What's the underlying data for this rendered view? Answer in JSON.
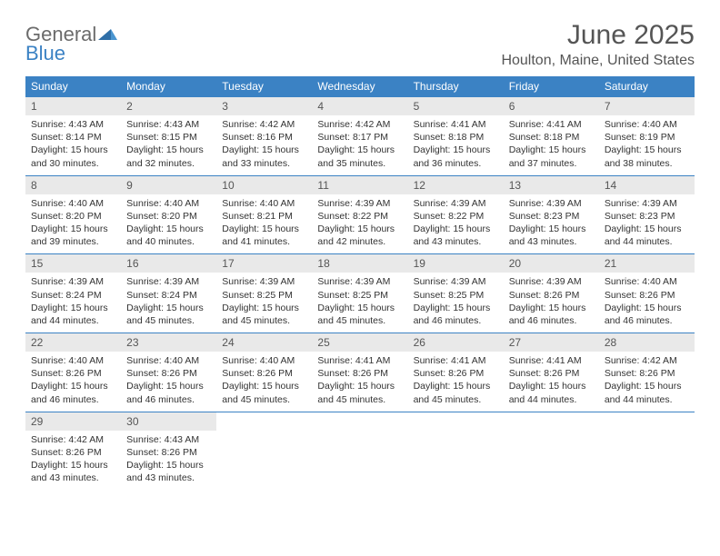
{
  "logo": {
    "word1": "General",
    "word2": "Blue"
  },
  "title": "June 2025",
  "subtitle": "Houlton, Maine, United States",
  "colors": {
    "header_bg": "#3b82c4",
    "daynum_bg": "#e9e9e9",
    "text": "#333333",
    "title": "#555555"
  },
  "weekdays": [
    "Sunday",
    "Monday",
    "Tuesday",
    "Wednesday",
    "Thursday",
    "Friday",
    "Saturday"
  ],
  "weeks": [
    [
      {
        "n": "1",
        "sr": "4:43 AM",
        "ss": "8:14 PM",
        "dl": "15 hours and 30 minutes."
      },
      {
        "n": "2",
        "sr": "4:43 AM",
        "ss": "8:15 PM",
        "dl": "15 hours and 32 minutes."
      },
      {
        "n": "3",
        "sr": "4:42 AM",
        "ss": "8:16 PM",
        "dl": "15 hours and 33 minutes."
      },
      {
        "n": "4",
        "sr": "4:42 AM",
        "ss": "8:17 PM",
        "dl": "15 hours and 35 minutes."
      },
      {
        "n": "5",
        "sr": "4:41 AM",
        "ss": "8:18 PM",
        "dl": "15 hours and 36 minutes."
      },
      {
        "n": "6",
        "sr": "4:41 AM",
        "ss": "8:18 PM",
        "dl": "15 hours and 37 minutes."
      },
      {
        "n": "7",
        "sr": "4:40 AM",
        "ss": "8:19 PM",
        "dl": "15 hours and 38 minutes."
      }
    ],
    [
      {
        "n": "8",
        "sr": "4:40 AM",
        "ss": "8:20 PM",
        "dl": "15 hours and 39 minutes."
      },
      {
        "n": "9",
        "sr": "4:40 AM",
        "ss": "8:20 PM",
        "dl": "15 hours and 40 minutes."
      },
      {
        "n": "10",
        "sr": "4:40 AM",
        "ss": "8:21 PM",
        "dl": "15 hours and 41 minutes."
      },
      {
        "n": "11",
        "sr": "4:39 AM",
        "ss": "8:22 PM",
        "dl": "15 hours and 42 minutes."
      },
      {
        "n": "12",
        "sr": "4:39 AM",
        "ss": "8:22 PM",
        "dl": "15 hours and 43 minutes."
      },
      {
        "n": "13",
        "sr": "4:39 AM",
        "ss": "8:23 PM",
        "dl": "15 hours and 43 minutes."
      },
      {
        "n": "14",
        "sr": "4:39 AM",
        "ss": "8:23 PM",
        "dl": "15 hours and 44 minutes."
      }
    ],
    [
      {
        "n": "15",
        "sr": "4:39 AM",
        "ss": "8:24 PM",
        "dl": "15 hours and 44 minutes."
      },
      {
        "n": "16",
        "sr": "4:39 AM",
        "ss": "8:24 PM",
        "dl": "15 hours and 45 minutes."
      },
      {
        "n": "17",
        "sr": "4:39 AM",
        "ss": "8:25 PM",
        "dl": "15 hours and 45 minutes."
      },
      {
        "n": "18",
        "sr": "4:39 AM",
        "ss": "8:25 PM",
        "dl": "15 hours and 45 minutes."
      },
      {
        "n": "19",
        "sr": "4:39 AM",
        "ss": "8:25 PM",
        "dl": "15 hours and 46 minutes."
      },
      {
        "n": "20",
        "sr": "4:39 AM",
        "ss": "8:26 PM",
        "dl": "15 hours and 46 minutes."
      },
      {
        "n": "21",
        "sr": "4:40 AM",
        "ss": "8:26 PM",
        "dl": "15 hours and 46 minutes."
      }
    ],
    [
      {
        "n": "22",
        "sr": "4:40 AM",
        "ss": "8:26 PM",
        "dl": "15 hours and 46 minutes."
      },
      {
        "n": "23",
        "sr": "4:40 AM",
        "ss": "8:26 PM",
        "dl": "15 hours and 46 minutes."
      },
      {
        "n": "24",
        "sr": "4:40 AM",
        "ss": "8:26 PM",
        "dl": "15 hours and 45 minutes."
      },
      {
        "n": "25",
        "sr": "4:41 AM",
        "ss": "8:26 PM",
        "dl": "15 hours and 45 minutes."
      },
      {
        "n": "26",
        "sr": "4:41 AM",
        "ss": "8:26 PM",
        "dl": "15 hours and 45 minutes."
      },
      {
        "n": "27",
        "sr": "4:41 AM",
        "ss": "8:26 PM",
        "dl": "15 hours and 44 minutes."
      },
      {
        "n": "28",
        "sr": "4:42 AM",
        "ss": "8:26 PM",
        "dl": "15 hours and 44 minutes."
      }
    ],
    [
      {
        "n": "29",
        "sr": "4:42 AM",
        "ss": "8:26 PM",
        "dl": "15 hours and 43 minutes."
      },
      {
        "n": "30",
        "sr": "4:43 AM",
        "ss": "8:26 PM",
        "dl": "15 hours and 43 minutes."
      },
      null,
      null,
      null,
      null,
      null
    ]
  ],
  "labels": {
    "sunrise": "Sunrise: ",
    "sunset": "Sunset: ",
    "daylight": "Daylight: "
  }
}
